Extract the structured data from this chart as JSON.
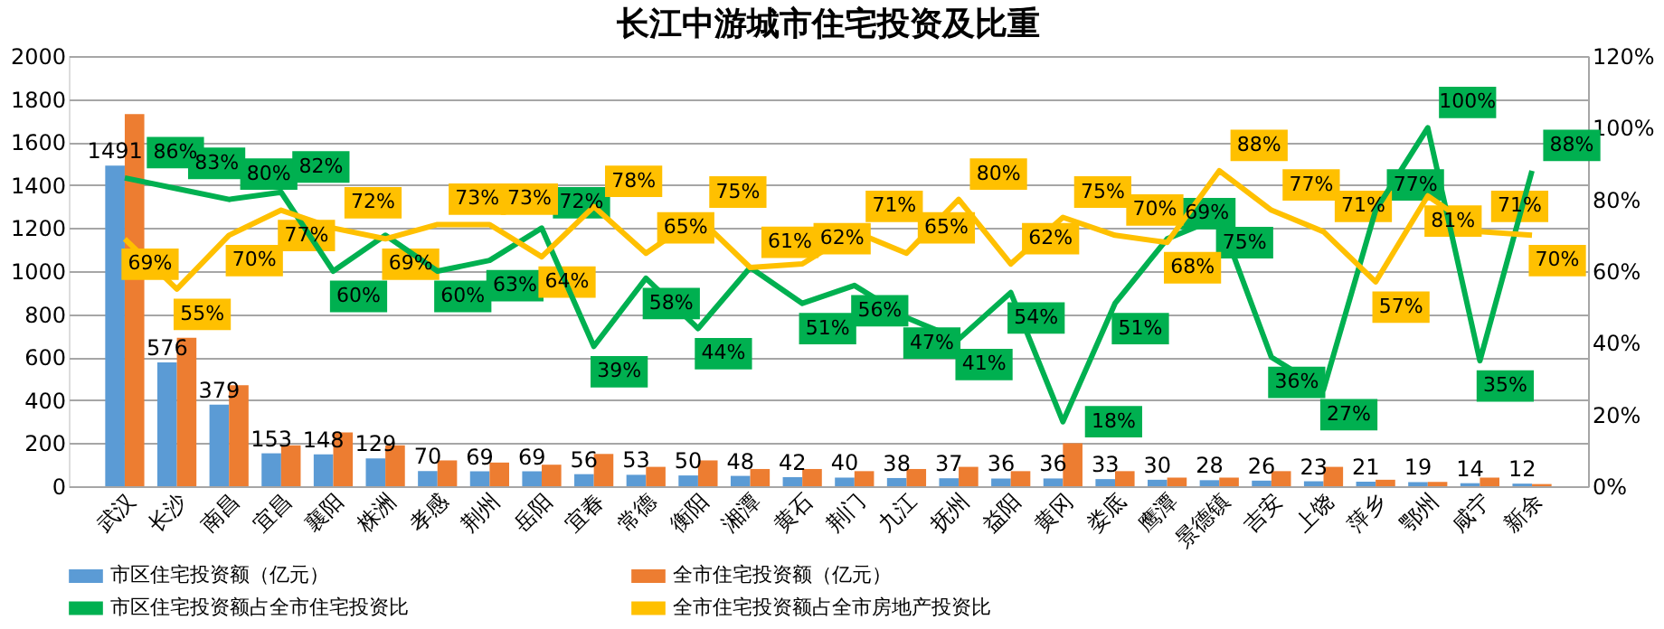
{
  "chart_data": {
    "type": "bar",
    "title": "长江中游城市住宅投资及比重",
    "categories": [
      "武汉",
      "长沙",
      "南昌",
      "宜昌",
      "襄阳",
      "株洲",
      "孝感",
      "荆州",
      "岳阳",
      "宜春",
      "常德",
      "衡阳",
      "湘潭",
      "黄石",
      "荆门",
      "九江",
      "抚州",
      "益阳",
      "黄冈",
      "娄底",
      "鹰潭",
      "景德镇",
      "吉安",
      "上饶",
      "萍乡",
      "鄂州",
      "咸宁",
      "新余"
    ],
    "series": [
      {
        "name": "市区住宅投资额（亿元）",
        "axis": "y",
        "color": "#5b9bd5",
        "values": [
          1491,
          576,
          379,
          153,
          148,
          129,
          70,
          69,
          69,
          56,
          53,
          50,
          48,
          42,
          40,
          38,
          37,
          36,
          36,
          33,
          30,
          28,
          26,
          23,
          21,
          19,
          14,
          12
        ],
        "value_labels": [
          "1491",
          "576",
          "379",
          "153",
          "148",
          "129",
          "70",
          "69",
          "69",
          "56",
          "53",
          "50",
          "48",
          "42",
          "40",
          "38",
          "37",
          "36",
          "36",
          "33",
          "30",
          "28",
          "26",
          "23",
          "21",
          "19",
          "14",
          "12"
        ]
      },
      {
        "name": "全市住宅投资额（亿元）",
        "axis": "y",
        "color": "#ed7d31",
        "values": [
          1730,
          690,
          470,
          190,
          250,
          190,
          120,
          110,
          100,
          150,
          90,
          120,
          80,
          80,
          70,
          80,
          90,
          70,
          200,
          70,
          40,
          40,
          70,
          90,
          30,
          20,
          40,
          10
        ]
      },
      {
        "name": "市区住宅投资额占全市住宅投资比",
        "type": "line",
        "axis": "y2",
        "color": "#00b050",
        "values": [
          86,
          83,
          80,
          82,
          60,
          70,
          60,
          63,
          72,
          39,
          58,
          44,
          61,
          51,
          56,
          47,
          41,
          54,
          18,
          51,
          69,
          75,
          36,
          27,
          77,
          100,
          35,
          88
        ],
        "value_labels": [
          "86%",
          "83%",
          "80%",
          "82%",
          "60%",
          null,
          "60%",
          "63%",
          "72%",
          "39%",
          "58%",
          "44%",
          null,
          "51%",
          "56%",
          "47%",
          "41%",
          "54%",
          "18%",
          "51%",
          "69%",
          "75%",
          "36%",
          "27%",
          "77%",
          "100%",
          "35%",
          "88%"
        ]
      },
      {
        "name": "全市住宅投资额占全市房地产投资比",
        "type": "line",
        "axis": "y2",
        "color": "#ffc000",
        "values": [
          69,
          55,
          70,
          77,
          72,
          69,
          73,
          73,
          64,
          78,
          65,
          75,
          61,
          62,
          71,
          65,
          80,
          62,
          75,
          70,
          68,
          88,
          77,
          71,
          57,
          81,
          71,
          70
        ],
        "value_labels": [
          "69%",
          "55%",
          "70%",
          "77%",
          "72%",
          "69%",
          "73%",
          "73%",
          "64%",
          "78%",
          "65%",
          "75%",
          "61%",
          "62%",
          "71%",
          "65%",
          "80%",
          "62%",
          "75%",
          "70%",
          "68%",
          "88%",
          "77%",
          "71%",
          "57%",
          "81%",
          "71%",
          "70%"
        ]
      }
    ],
    "ylim": [
      0,
      2000
    ],
    "yticks": [
      0,
      200,
      400,
      600,
      800,
      1000,
      1200,
      1400,
      1600,
      1800,
      2000
    ],
    "y2lim": [
      0,
      120
    ],
    "y2ticks": [
      {
        "value": 0,
        "label": "0%"
      },
      {
        "value": 20,
        "label": "20%"
      },
      {
        "value": 40,
        "label": "40%"
      },
      {
        "value": 60,
        "label": "60%"
      },
      {
        "value": 80,
        "label": "80%"
      },
      {
        "value": 100,
        "label": "100%"
      },
      {
        "value": 120,
        "label": "120%"
      }
    ],
    "grid": "y",
    "legend": "bottom"
  }
}
